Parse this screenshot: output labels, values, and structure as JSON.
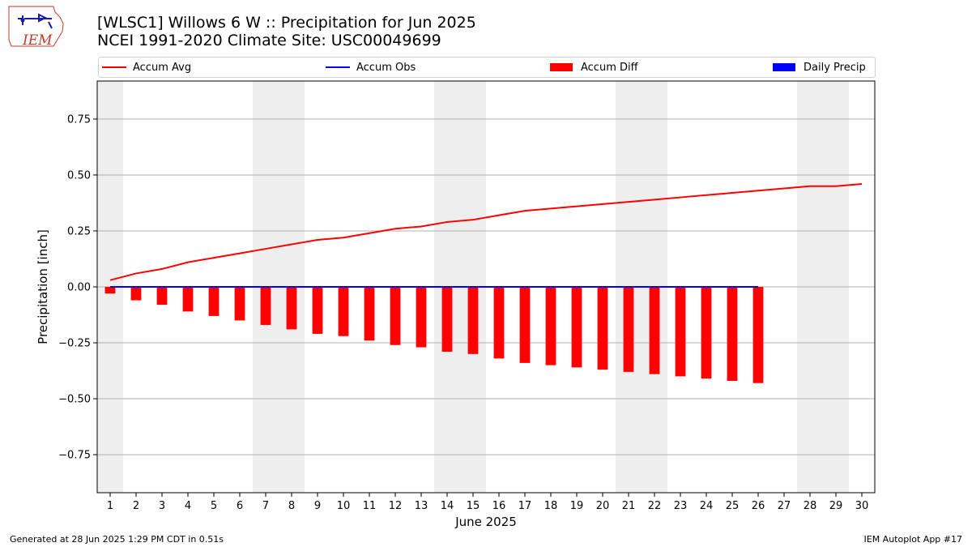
{
  "header": {
    "title_line1": "[WLSC1] Willows 6 W :: Precipitation for Jun 2025",
    "title_line2": "NCEI 1991-2020 Climate Site: USC00049699",
    "logo_text": "IEM"
  },
  "footer": {
    "generated": "Generated at 28 Jun 2025 1:29 PM CDT in 0.51s",
    "app": "IEM Autoplot App #17"
  },
  "colors": {
    "accum_avg": "#ff0000",
    "accum_obs": "#0000ff",
    "accum_diff": "#ff0000",
    "daily_precip": "#0000ff",
    "weekend_shade": "#eeeeee",
    "grid": "#b0b0b0"
  },
  "chart_data": {
    "type": "line",
    "xlabel": "June 2025",
    "ylabel": "Precipitation [inch]",
    "xlim": [
      0.5,
      30.5
    ],
    "ylim": [
      -0.92,
      0.92
    ],
    "yticks": [
      -0.75,
      -0.5,
      -0.25,
      0.0,
      0.25,
      0.5,
      0.75
    ],
    "ytick_labels": [
      "−0.75",
      "−0.50",
      "−0.25",
      "0.00",
      "0.25",
      "0.50",
      "0.75"
    ],
    "x": [
      1,
      2,
      3,
      4,
      5,
      6,
      7,
      8,
      9,
      10,
      11,
      12,
      13,
      14,
      15,
      16,
      17,
      18,
      19,
      20,
      21,
      22,
      23,
      24,
      25,
      26,
      27,
      28,
      29,
      30
    ],
    "xtick_labels": [
      "1",
      "2",
      "3",
      "4",
      "5",
      "6",
      "7",
      "8",
      "9",
      "10",
      "11",
      "12",
      "13",
      "14",
      "15",
      "16",
      "17",
      "18",
      "19",
      "20",
      "21",
      "22",
      "23",
      "24",
      "25",
      "26",
      "27",
      "28",
      "29",
      "30"
    ],
    "grid": true,
    "legend_position": "top",
    "weekend_shading": [
      [
        0.5,
        1.5
      ],
      [
        6.5,
        8.5
      ],
      [
        13.5,
        15.5
      ],
      [
        20.5,
        22.5
      ],
      [
        27.5,
        29.5
      ]
    ],
    "series": [
      {
        "name": "Accum Avg",
        "type": "line",
        "x": [
          1,
          2,
          3,
          4,
          5,
          6,
          7,
          8,
          9,
          10,
          11,
          12,
          13,
          14,
          15,
          16,
          17,
          18,
          19,
          20,
          21,
          22,
          23,
          24,
          25,
          26,
          27,
          28,
          29,
          30
        ],
        "values": [
          0.03,
          0.06,
          0.08,
          0.11,
          0.13,
          0.15,
          0.17,
          0.19,
          0.21,
          0.22,
          0.24,
          0.26,
          0.27,
          0.29,
          0.3,
          0.32,
          0.34,
          0.35,
          0.36,
          0.37,
          0.38,
          0.39,
          0.4,
          0.41,
          0.42,
          0.43,
          0.44,
          0.45,
          0.45,
          0.46
        ]
      },
      {
        "name": "Accum Obs",
        "type": "line",
        "x": [
          1,
          2,
          3,
          4,
          5,
          6,
          7,
          8,
          9,
          10,
          11,
          12,
          13,
          14,
          15,
          16,
          17,
          18,
          19,
          20,
          21,
          22,
          23,
          24,
          25,
          26
        ],
        "values": [
          0,
          0,
          0,
          0,
          0,
          0,
          0,
          0,
          0,
          0,
          0,
          0,
          0,
          0,
          0,
          0,
          0,
          0,
          0,
          0,
          0,
          0,
          0,
          0,
          0,
          0
        ]
      },
      {
        "name": "Accum Diff",
        "type": "bar",
        "x": [
          1,
          2,
          3,
          4,
          5,
          6,
          7,
          8,
          9,
          10,
          11,
          12,
          13,
          14,
          15,
          16,
          17,
          18,
          19,
          20,
          21,
          22,
          23,
          24,
          25,
          26
        ],
        "values": [
          -0.03,
          -0.06,
          -0.08,
          -0.11,
          -0.13,
          -0.15,
          -0.17,
          -0.19,
          -0.21,
          -0.22,
          -0.24,
          -0.26,
          -0.27,
          -0.29,
          -0.3,
          -0.32,
          -0.34,
          -0.35,
          -0.36,
          -0.37,
          -0.38,
          -0.39,
          -0.4,
          -0.41,
          -0.42,
          -0.43
        ]
      },
      {
        "name": "Daily Precip",
        "type": "bar",
        "x": [],
        "values": []
      }
    ]
  }
}
